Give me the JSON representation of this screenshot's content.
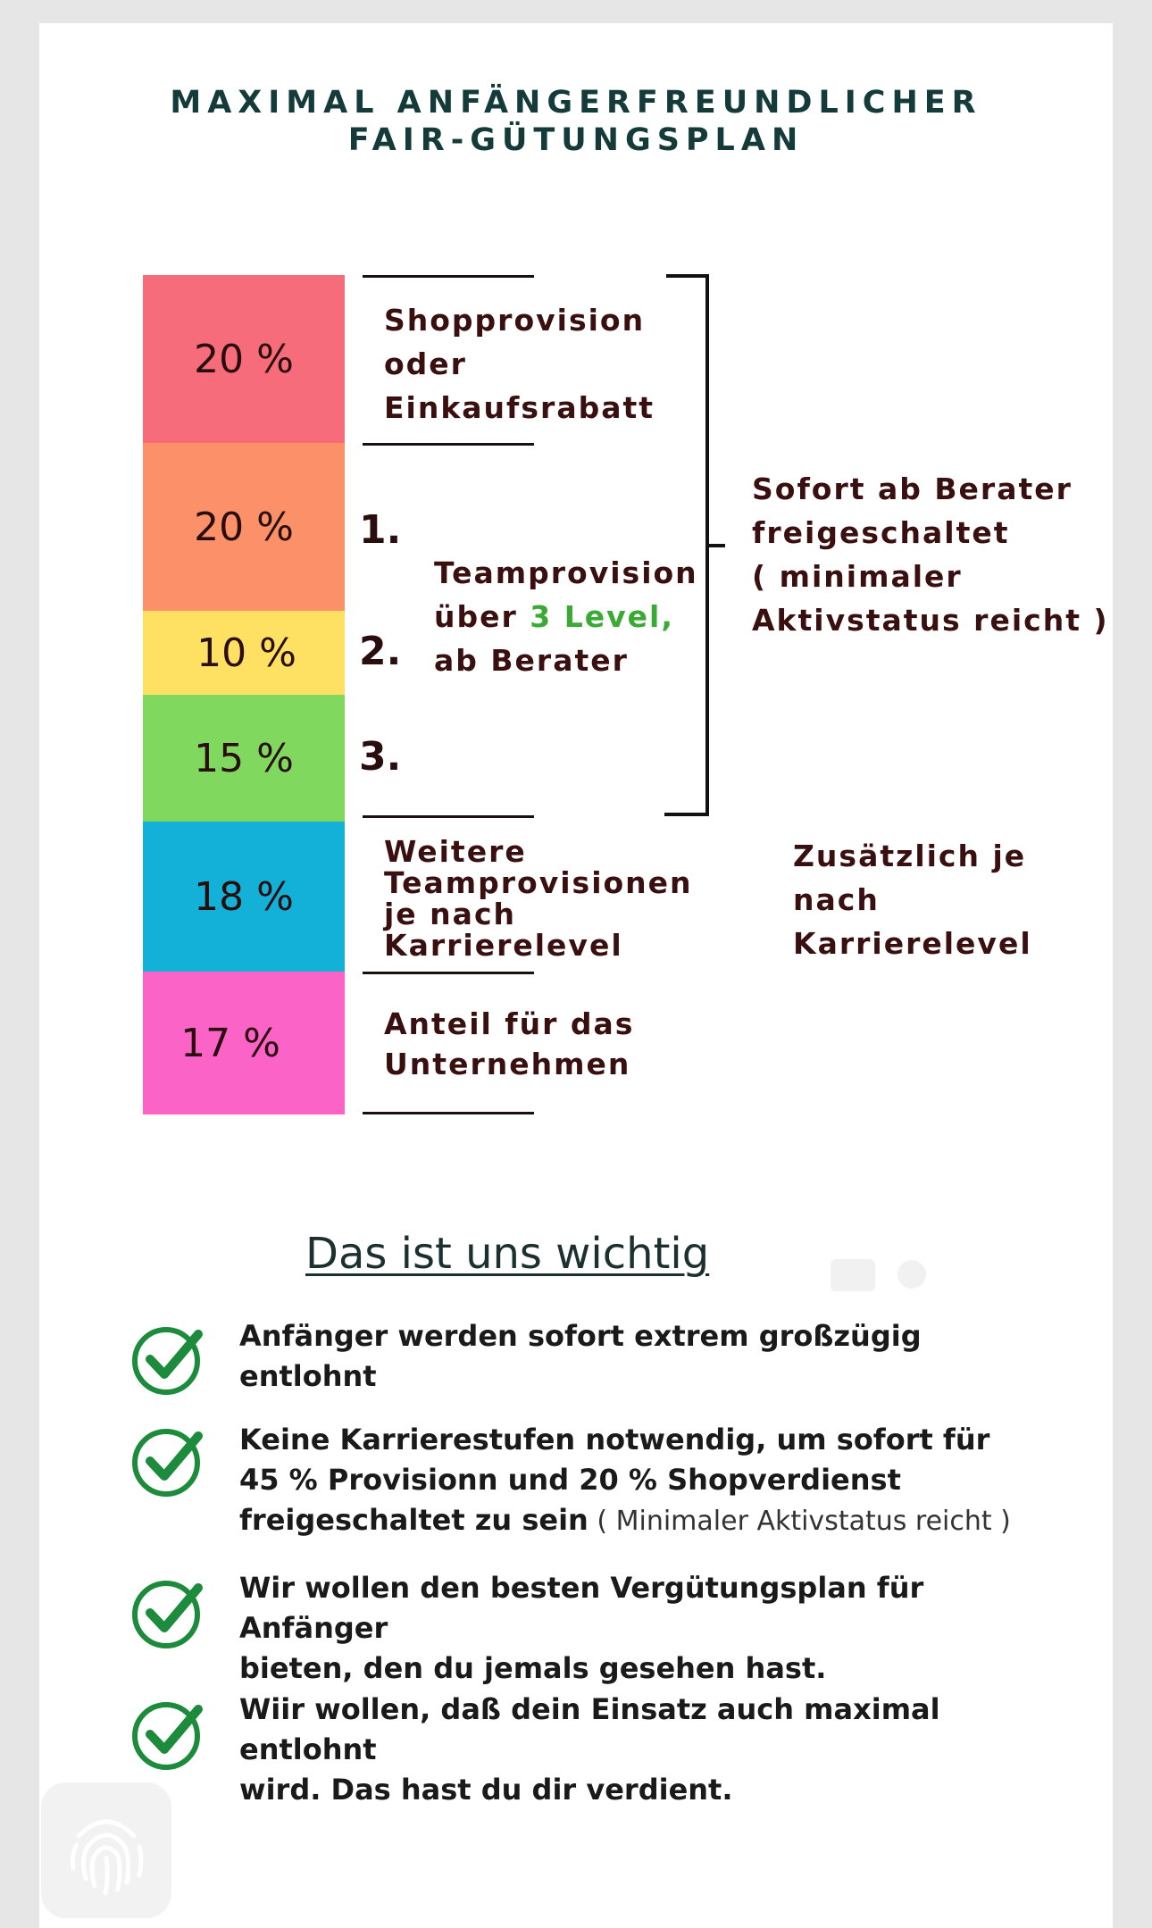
{
  "title": {
    "line1": "MAXIMAL ANFÄNGERFREUNDLICHER",
    "line2": "FAIR-GÜTUNGSPLAN"
  },
  "colors": {
    "seg_shop": "#f76c7b",
    "seg_l1": "#fc9068",
    "seg_l2": "#fee062",
    "seg_l3": "#80d95e",
    "seg_career": "#13b0d7",
    "seg_company": "#fb63c6",
    "level_highlight": "#3aaa35",
    "check_green": "#1c8c3c"
  },
  "segments": [
    {
      "percent": "20 %"
    },
    {
      "percent": "20 %"
    },
    {
      "percent": "10 %"
    },
    {
      "percent": "15 %"
    },
    {
      "percent": "18 %"
    },
    {
      "percent": "17 %"
    }
  ],
  "labels": {
    "shop_line1": "Shopprovision",
    "shop_line2": "oder",
    "shop_line3": "Einkaufsrabatt",
    "num1": "1.",
    "num2": "2.",
    "num3": "3.",
    "team_line1": "Teamprovision",
    "team_line2_pre": "über ",
    "team_line2_hl": "3 Level,",
    "team_line3": "ab Berater",
    "right1_line1": "Sofort ab Berater",
    "right1_line2": "freigeschaltet",
    "right1_line3": "( minimaler",
    "right1_line4": "Aktivstatus reicht )",
    "career_line1": "Weitere",
    "career_line2": "Teamprovisionen",
    "career_line3": "je nach",
    "career_line4": "Karrierelevel",
    "right2_line1": "Zusätzlich je",
    "right2_line2": "nach",
    "right2_line3": "Karrierelevel",
    "company_line1": "Anteil für das",
    "company_line2": "Unternehmen"
  },
  "section": {
    "heading": "Das ist uns wichtig",
    "points": [
      {
        "line1": "Anfänger werden sofort extrem großzügig",
        "line2": "entlohnt"
      },
      {
        "line1": "Keine Karrierestufen notwendig, um sofort für",
        "line2": "45 % Provisionn und 20 % Shopverdienst",
        "line3": "freigeschaltet zu sein",
        "line3_note": " ( Minimaler Aktivstatus reicht )"
      },
      {
        "line1": "Wir wollen den besten Vergütungsplan für Anfänger",
        "line2": "bieten, den du jemals gesehen hast."
      },
      {
        "line1": "Wiir wollen, daß dein Einsatz auch maximal entlohnt",
        "line2": "wird. Das hast du dir verdient."
      }
    ]
  },
  "icons": {
    "check": "check-circle-icon",
    "fingerprint": "fingerprint-icon"
  }
}
